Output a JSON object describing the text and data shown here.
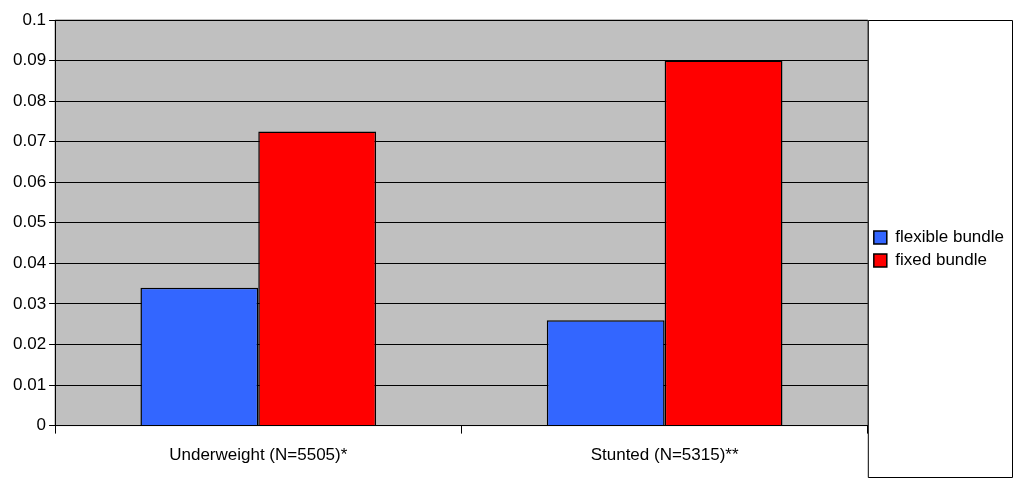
{
  "chart_data": {
    "type": "bar",
    "categories": [
      "Underweight (N=5505)*",
      "Stunted (N=5315)**"
    ],
    "series": [
      {
        "name": "flexible bundle",
        "color": "#3366ff",
        "values": [
          0.034,
          0.026
        ]
      },
      {
        "name": "fixed bundle",
        "color": "#ff0000",
        "values": [
          0.0725,
          0.09
        ]
      }
    ],
    "ylim": [
      0,
      0.1
    ],
    "yticks": [
      0,
      0.01,
      0.02,
      0.03,
      0.04,
      0.05,
      0.06,
      0.07,
      0.08,
      0.09,
      0.1
    ],
    "grid": "y",
    "legend": "right"
  }
}
